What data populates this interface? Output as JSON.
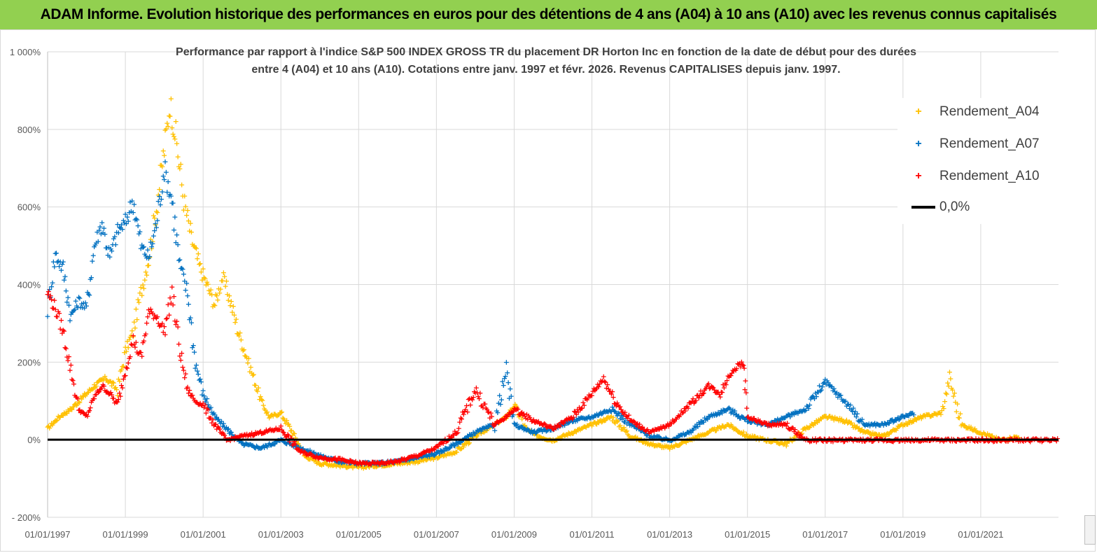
{
  "banner": {
    "title": "ADAM Informe. Evolution historique des performances en euros pour des détentions de 4 ans (A04) à 10 ans (A10) avec les revenus connus capitalisés"
  },
  "chart_data": {
    "type": "scatter",
    "title_line1": "Performance par rapport à l'indice S&P 500 INDEX GROSS TR  du placement DR Horton Inc en fonction de la date de début pour des durées",
    "title_line2": "entre 4 (A04) et 10 ans (A10).  Cotations entre janv. 1997 et févr. 2026. Revenus  CAPITALISES depuis janv. 1997.",
    "xlabel": "",
    "ylabel": "",
    "xlim": [
      1997.0,
      2023.0
    ],
    "ylim": [
      -200,
      1000
    ],
    "y_ticks": [
      1000,
      800,
      600,
      400,
      200,
      0,
      -200
    ],
    "y_tick_labels": [
      "1 000%",
      "800%",
      "600%",
      "400%",
      "200%",
      "0%",
      "- 200%"
    ],
    "x_ticks": [
      1997,
      1999,
      2001,
      2003,
      2005,
      2007,
      2009,
      2011,
      2013,
      2015,
      2017,
      2019,
      2021
    ],
    "x_tick_labels": [
      "01/01/1997",
      "01/01/1999",
      "01/01/2001",
      "01/01/2003",
      "01/01/2005",
      "01/01/2007",
      "01/01/2009",
      "01/01/2011",
      "01/01/2013",
      "01/01/2015",
      "01/01/2017",
      "01/01/2019",
      "01/01/2021"
    ],
    "grid": true,
    "legend_position": "top-right",
    "series": [
      {
        "name": "Rendement_A04",
        "color": "#ffc000",
        "marker": "plus",
        "x": [
          1997.0,
          1997.3,
          1997.6,
          1997.9,
          1998.2,
          1998.5,
          1998.8,
          1999.0,
          1999.2,
          1999.4,
          1999.6,
          1999.8,
          2000.0,
          2000.15,
          2000.3,
          2000.5,
          2000.7,
          2000.9,
          2001.1,
          2001.3,
          2001.5,
          2001.7,
          2001.9,
          2002.1,
          2002.3,
          2002.5,
          2002.7,
          2003.0,
          2003.3,
          2003.6,
          2004.0,
          2004.5,
          2005.0,
          2005.5,
          2006.0,
          2006.5,
          2007.0,
          2007.5,
          2008.0,
          2008.5,
          2008.8,
          2009.0,
          2009.3,
          2009.6,
          2010.0,
          2010.5,
          2011.0,
          2011.5,
          2012.0,
          2012.5,
          2013.0,
          2013.5,
          2014.0,
          2014.5,
          2015.0,
          2015.5,
          2016.0,
          2016.5,
          2017.0,
          2017.5,
          2018.0,
          2018.5,
          2019.0,
          2019.5,
          2020.0,
          2020.2,
          2020.5,
          2021.0,
          2021.5,
          2022.0
        ],
        "y": [
          30,
          60,
          80,
          110,
          140,
          160,
          130,
          230,
          280,
          380,
          470,
          600,
          750,
          870,
          780,
          620,
          520,
          450,
          400,
          350,
          420,
          360,
          280,
          220,
          160,
          100,
          60,
          70,
          20,
          -40,
          -60,
          -65,
          -70,
          -65,
          -60,
          -55,
          -45,
          -30,
          10,
          40,
          60,
          90,
          30,
          10,
          0,
          20,
          40,
          60,
          10,
          -10,
          -20,
          0,
          20,
          40,
          10,
          0,
          -10,
          30,
          60,
          50,
          20,
          10,
          40,
          60,
          70,
          160,
          40,
          20,
          0,
          10
        ]
      },
      {
        "name": "Rendement_A07",
        "color": "#0070c0",
        "marker": "plus",
        "x": [
          1997.0,
          1997.2,
          1997.4,
          1997.6,
          1997.8,
          1998.0,
          1998.2,
          1998.4,
          1998.6,
          1998.8,
          1999.0,
          1999.2,
          1999.4,
          1999.6,
          1999.8,
          2000.0,
          2000.2,
          2000.4,
          2000.6,
          2000.8,
          2001.0,
          2001.3,
          2001.6,
          2002.0,
          2002.5,
          2003.0,
          2003.5,
          2004.0,
          2004.5,
          2005.0,
          2005.5,
          2006.0,
          2006.5,
          2007.0,
          2007.5,
          2008.0,
          2008.5,
          2008.8,
          2009.0,
          2009.5,
          2010.0,
          2010.5,
          2011.0,
          2011.5,
          2012.0,
          2012.5,
          2013.0,
          2013.5,
          2014.0,
          2014.5,
          2015.0,
          2015.5,
          2016.0,
          2016.5,
          2017.0,
          2017.3,
          2017.6,
          2018.0,
          2018.5,
          2019.0,
          2019.3
        ],
        "y": [
          340,
          480,
          440,
          320,
          360,
          340,
          500,
          560,
          470,
          540,
          560,
          620,
          500,
          470,
          560,
          700,
          620,
          450,
          380,
          200,
          120,
          60,
          30,
          -10,
          -20,
          0,
          -20,
          -40,
          -55,
          -60,
          -60,
          -55,
          -45,
          -35,
          -10,
          20,
          40,
          180,
          40,
          20,
          30,
          50,
          60,
          80,
          40,
          10,
          0,
          20,
          60,
          80,
          50,
          40,
          60,
          80,
          150,
          120,
          90,
          40,
          40,
          60,
          70
        ]
      },
      {
        "name": "Rendement_A10",
        "color": "#ff0000",
        "marker": "plus",
        "x": [
          1997.0,
          1997.2,
          1997.4,
          1997.6,
          1997.8,
          1998.0,
          1998.2,
          1998.4,
          1998.6,
          1998.8,
          1999.0,
          1999.2,
          1999.4,
          1999.6,
          1999.8,
          2000.0,
          2000.2,
          2000.4,
          2000.6,
          2000.8,
          2001.0,
          2001.3,
          2001.6,
          2002.0,
          2002.5,
          2003.0,
          2003.5,
          2004.0,
          2004.5,
          2005.0,
          2005.5,
          2006.0,
          2006.5,
          2007.0,
          2007.5,
          2008.0,
          2008.5,
          2008.8,
          2009.0,
          2009.5,
          2010.0,
          2010.5,
          2011.0,
          2011.3,
          2011.6,
          2012.0,
          2012.5,
          2013.0,
          2013.3,
          2013.6,
          2014.0,
          2014.3,
          2014.6,
          2014.9,
          2015.0,
          2015.5,
          2016.0,
          2016.5,
          2017.0,
          2018.0,
          2019.0,
          2020.0,
          2021.0,
          2022.0,
          2023.0
        ],
        "y": [
          380,
          340,
          280,
          180,
          80,
          60,
          110,
          140,
          120,
          90,
          180,
          260,
          210,
          330,
          320,
          280,
          380,
          230,
          130,
          100,
          90,
          40,
          0,
          10,
          20,
          30,
          -30,
          -45,
          -50,
          -60,
          -60,
          -55,
          -40,
          -20,
          20,
          130,
          40,
          60,
          80,
          50,
          30,
          60,
          120,
          160,
          100,
          50,
          20,
          40,
          70,
          100,
          140,
          120,
          180,
          200,
          60,
          40,
          40,
          0,
          0,
          0,
          0,
          0,
          0,
          0,
          0
        ]
      },
      {
        "name": "0,0%",
        "color": "#000000",
        "marker": "line",
        "x": [
          1997.0,
          2023.0
        ],
        "y": [
          0,
          0
        ]
      }
    ]
  }
}
